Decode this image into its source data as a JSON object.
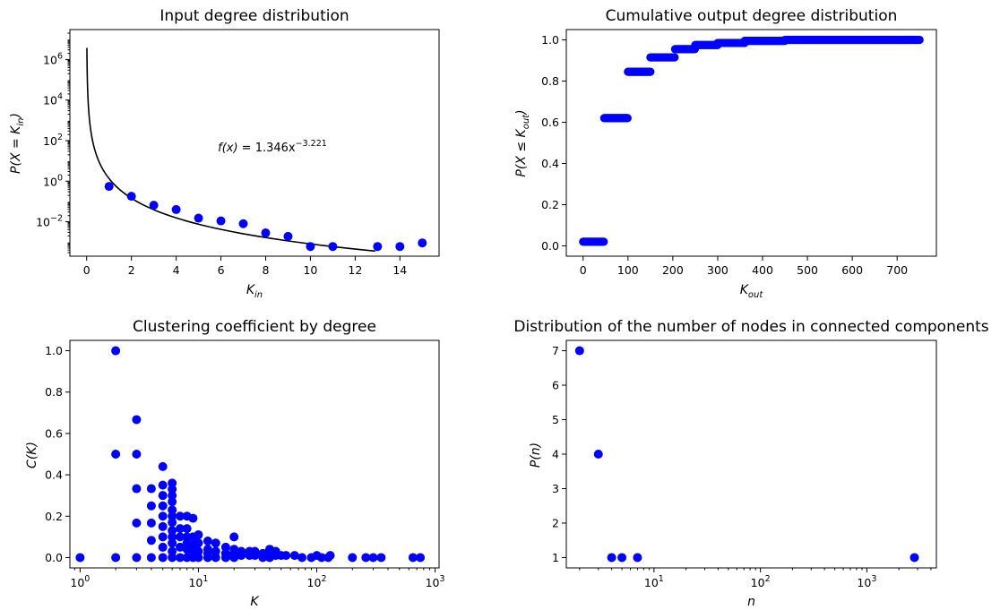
{
  "colors": {
    "points": "#0000ff",
    "fit_line": "#000000",
    "axes": "#000000",
    "background": "#ffffff"
  },
  "chart_data": [
    {
      "id": "in",
      "type": "scatter",
      "title": "Input degree distribution",
      "xlabel": "K",
      "xlabel_sub": "in",
      "ylabel": "P(X = K",
      "ylabel_sub": "in",
      "ylabel_end": ")",
      "xscale": "linear",
      "yscale": "log",
      "xlim": [
        -0.75,
        15.75
      ],
      "ylim": [
        0.0002,
        30000000
      ],
      "xticks": [
        0,
        2,
        4,
        6,
        8,
        10,
        12,
        14
      ],
      "yticks": [
        0.01,
        1,
        100,
        10000,
        1000000
      ],
      "ytick_labels": [
        [
          "10",
          "−2"
        ],
        [
          "10",
          "0"
        ],
        [
          "10",
          "2"
        ],
        [
          "10",
          "4"
        ],
        [
          "10",
          "6"
        ]
      ],
      "points": [
        [
          1,
          0.55
        ],
        [
          2,
          0.18
        ],
        [
          3,
          0.065
        ],
        [
          4,
          0.04
        ],
        [
          5,
          0.015
        ],
        [
          6,
          0.011
        ],
        [
          7,
          0.008
        ],
        [
          8,
          0.0028
        ],
        [
          9,
          0.0019
        ],
        [
          10,
          0.0006
        ],
        [
          11,
          0.0006
        ],
        [
          13,
          0.0006
        ],
        [
          14,
          0.0006
        ],
        [
          15,
          0.0009
        ]
      ],
      "fit": {
        "a": 1.346,
        "b": -3.221,
        "x_range": [
          0.01,
          12.9
        ]
      },
      "annotation": {
        "prefix": "f(x)",
        "equation": " = 1.346x",
        "exponent": "−3.221",
        "x": 8.3,
        "y": 30
      },
      "grid": false,
      "legend": "none"
    },
    {
      "id": "out",
      "type": "scatter",
      "title": "Cumulative output degree distribution",
      "xlabel": "K",
      "xlabel_sub": "out",
      "ylabel": "P(X ≤ K",
      "ylabel_sub": "out",
      "ylabel_end": ")",
      "xscale": "linear",
      "yscale": "linear",
      "xlim": [
        -37.5,
        787.5
      ],
      "ylim": [
        -0.05,
        1.05
      ],
      "xticks": [
        0,
        100,
        200,
        300,
        400,
        500,
        600,
        700
      ],
      "yticks": [
        0,
        0.2,
        0.4,
        0.6,
        0.8,
        1
      ],
      "ytick_labels": [
        "0.0",
        "0.2",
        "0.4",
        "0.6",
        "0.8",
        "1.0"
      ],
      "runs": [
        [
          0,
          47,
          0.02
        ],
        [
          47,
          100,
          0.62
        ],
        [
          100,
          150,
          0.845
        ],
        [
          150,
          205,
          0.915
        ],
        [
          205,
          250,
          0.955
        ],
        [
          250,
          300,
          0.975
        ],
        [
          300,
          360,
          0.985
        ],
        [
          360,
          450,
          0.995
        ],
        [
          450,
          750,
          1.0
        ]
      ],
      "grid": false,
      "legend": "none"
    },
    {
      "id": "clust",
      "type": "scatter",
      "title": "Clustering coefficient by degree",
      "xlabel": "K",
      "ylabel": "C(K)",
      "xscale": "log",
      "yscale": "linear",
      "xlim": [
        0.82,
        1080
      ],
      "ylim": [
        -0.05,
        1.05
      ],
      "xticks": [
        1,
        10,
        100,
        1000
      ],
      "xtick_labels": [
        [
          "10",
          "0"
        ],
        [
          "10",
          "1"
        ],
        [
          "10",
          "2"
        ],
        [
          "10",
          "3"
        ]
      ],
      "yticks": [
        0,
        0.2,
        0.4,
        0.6,
        0.8,
        1
      ],
      "ytick_labels": [
        "0.0",
        "0.2",
        "0.4",
        "0.6",
        "0.8",
        "1.0"
      ],
      "points": [
        [
          1,
          0
        ],
        [
          2,
          1
        ],
        [
          2,
          0.5
        ],
        [
          2,
          0
        ],
        [
          3,
          0.667
        ],
        [
          3,
          0.5
        ],
        [
          3,
          0.333
        ],
        [
          3,
          0.167
        ],
        [
          3,
          0
        ],
        [
          4,
          0.333
        ],
        [
          4,
          0.25
        ],
        [
          4,
          0.167
        ],
        [
          4,
          0.083
        ],
        [
          4,
          0
        ],
        [
          5,
          0.44
        ],
        [
          5,
          0.35
        ],
        [
          5,
          0.3
        ],
        [
          5,
          0.25
        ],
        [
          5,
          0.2
        ],
        [
          5,
          0.15
        ],
        [
          5,
          0.1
        ],
        [
          5,
          0.05
        ],
        [
          5,
          0
        ],
        [
          6,
          0.36
        ],
        [
          6,
          0.33
        ],
        [
          6,
          0.3
        ],
        [
          6,
          0.27
        ],
        [
          6,
          0.23
        ],
        [
          6,
          0.2
        ],
        [
          6,
          0.17
        ],
        [
          6,
          0.13
        ],
        [
          6,
          0.1
        ],
        [
          6,
          0.07
        ],
        [
          6,
          0.03
        ],
        [
          6,
          0
        ],
        [
          7,
          0.2
        ],
        [
          7,
          0.14
        ],
        [
          7,
          0.1
        ],
        [
          7,
          0.05
        ],
        [
          7,
          0
        ],
        [
          8,
          0.2
        ],
        [
          8,
          0.14
        ],
        [
          8,
          0.1
        ],
        [
          8,
          0.07
        ],
        [
          8,
          0.04
        ],
        [
          8,
          0
        ],
        [
          9,
          0.19
        ],
        [
          9,
          0.1
        ],
        [
          9,
          0.06
        ],
        [
          9,
          0.03
        ],
        [
          9,
          0
        ],
        [
          10,
          0.11
        ],
        [
          10,
          0.07
        ],
        [
          10,
          0.03
        ],
        [
          10,
          0
        ],
        [
          12,
          0.08
        ],
        [
          12,
          0.04
        ],
        [
          12,
          0.02
        ],
        [
          12,
          0
        ],
        [
          14,
          0.07
        ],
        [
          14,
          0.03
        ],
        [
          14,
          0
        ],
        [
          17,
          0.05
        ],
        [
          17,
          0.02
        ],
        [
          17,
          0
        ],
        [
          20,
          0.1
        ],
        [
          20,
          0.04
        ],
        [
          20,
          0.02
        ],
        [
          20,
          0
        ],
        [
          23,
          0.03
        ],
        [
          23,
          0.01
        ],
        [
          27,
          0.03
        ],
        [
          27,
          0.01
        ],
        [
          30,
          0.03
        ],
        [
          30,
          0.01
        ],
        [
          35,
          0.02
        ],
        [
          35,
          0
        ],
        [
          40,
          0.04
        ],
        [
          40,
          0.02
        ],
        [
          40,
          0
        ],
        [
          45,
          0.03
        ],
        [
          45,
          0.01
        ],
        [
          50,
          0.01
        ],
        [
          55,
          0.01
        ],
        [
          65,
          0.01
        ],
        [
          75,
          0
        ],
        [
          90,
          0
        ],
        [
          100,
          0.01
        ],
        [
          110,
          0
        ],
        [
          125,
          0
        ],
        [
          130,
          0.01
        ],
        [
          200,
          0
        ],
        [
          260,
          0
        ],
        [
          300,
          0
        ],
        [
          350,
          0
        ],
        [
          650,
          0
        ],
        [
          750,
          0
        ]
      ],
      "grid": false,
      "legend": "none"
    },
    {
      "id": "comp",
      "type": "scatter",
      "title": "Distribution of the number of nodes in connected components",
      "xlabel": "n",
      "ylabel": "P(n)",
      "xscale": "log",
      "yscale": "linear",
      "xlim": [
        1.5,
        4500
      ],
      "ylim": [
        0.7,
        7.3
      ],
      "xticks": [
        10,
        100,
        1000
      ],
      "xtick_labels": [
        [
          "10",
          "1"
        ],
        [
          "10",
          "2"
        ],
        [
          "10",
          "3"
        ]
      ],
      "yticks": [
        1,
        2,
        3,
        4,
        5,
        6,
        7
      ],
      "ytick_labels": [
        "1",
        "2",
        "3",
        "4",
        "5",
        "6",
        "7"
      ],
      "points": [
        [
          2,
          7
        ],
        [
          3,
          4
        ],
        [
          4,
          1
        ],
        [
          5,
          1
        ],
        [
          7,
          1
        ],
        [
          2800,
          1
        ]
      ],
      "grid": false,
      "legend": "none"
    }
  ]
}
